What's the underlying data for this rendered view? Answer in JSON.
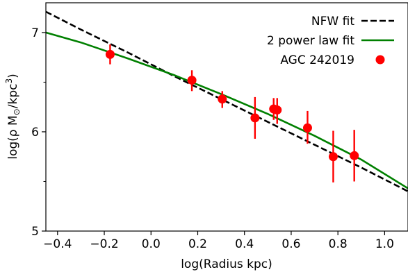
{
  "chart_data": {
    "type": "scatter",
    "xlabel": "log(Radius kpc)",
    "ylabel_parts": [
      "log(",
      "ρ",
      " M",
      "⊙",
      "/kpc",
      "3",
      ")"
    ],
    "xlim": [
      -0.45,
      1.1
    ],
    "ylim": [
      5.0,
      7.3
    ],
    "x_ticks": [
      -0.4,
      -0.2,
      0.0,
      0.2,
      0.4,
      0.6,
      0.8,
      1.0
    ],
    "x_tick_labels": [
      "−0.4",
      "−0.2",
      "0.0",
      "0.2",
      "0.4",
      "0.6",
      "0.8",
      "1.0"
    ],
    "y_ticks": [
      5,
      6,
      7
    ],
    "y_tick_labels": [
      "5",
      "6",
      "7"
    ],
    "y_minor_ticks": [
      5.5,
      6.5
    ],
    "grid": false,
    "legend_position": "top-right",
    "series": [
      {
        "name": "NFW fit",
        "kind": "line",
        "style": "dashed",
        "color": "#000000",
        "x": [
          -0.45,
          -0.3,
          -0.1,
          0.1,
          0.3,
          0.5,
          0.7,
          0.9,
          1.1
        ],
        "y": [
          7.21,
          7.03,
          6.8,
          6.56,
          6.33,
          6.1,
          5.87,
          5.64,
          5.4
        ]
      },
      {
        "name": "2 power law fit",
        "kind": "line",
        "style": "solid",
        "color": "#008000",
        "x": [
          -0.45,
          -0.3,
          -0.1,
          0.1,
          0.3,
          0.5,
          0.7,
          0.9,
          1.1
        ],
        "y": [
          7.0,
          6.9,
          6.74,
          6.57,
          6.38,
          6.18,
          5.96,
          5.72,
          5.43
        ]
      },
      {
        "name": "AGC 242019",
        "kind": "errorbar",
        "color": "#ff0000",
        "x": [
          -0.175,
          0.175,
          0.305,
          0.445,
          0.525,
          0.54,
          0.67,
          0.78,
          0.87
        ],
        "y": [
          6.78,
          6.52,
          6.33,
          6.14,
          6.23,
          6.22,
          6.04,
          5.75,
          5.76
        ],
        "yerr_low": [
          6.68,
          6.41,
          6.24,
          5.93,
          6.12,
          6.08,
          5.88,
          5.49,
          5.5
        ],
        "yerr_high": [
          6.88,
          6.62,
          6.41,
          6.35,
          6.34,
          6.34,
          6.21,
          6.01,
          6.02
        ]
      }
    ]
  }
}
